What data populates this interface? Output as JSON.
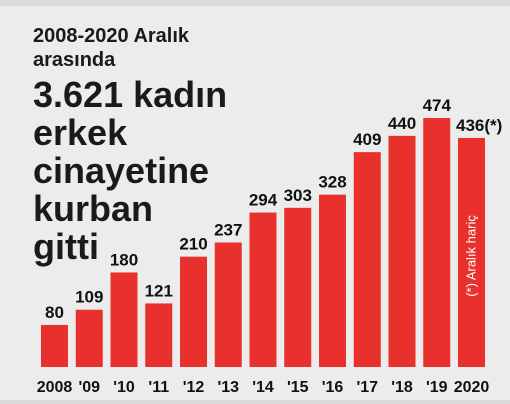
{
  "header": {
    "intro_line1": "2008-2020 Aralık",
    "intro_line2": "arasında",
    "headline_lines": [
      "3.621 kadın",
      "erkek",
      "cinayetine",
      "kurban",
      "gitti"
    ]
  },
  "chart_data": {
    "type": "bar",
    "categories": [
      "2008",
      "'09",
      "'10",
      "'11",
      "'12",
      "'13",
      "'14",
      "'15",
      "'16",
      "'17",
      "'18",
      "'19",
      "2020"
    ],
    "values": [
      80,
      109,
      180,
      121,
      210,
      237,
      294,
      303,
      328,
      409,
      440,
      474,
      436
    ],
    "value_labels": [
      "80",
      "109",
      "180",
      "121",
      "210",
      "237",
      "294",
      "303",
      "328",
      "409",
      "440",
      "474",
      "436(*)"
    ],
    "bar_note": "(*) Aralık hariç",
    "ylim": [
      0,
      474
    ],
    "grid": false,
    "colors": {
      "bar": "#e8302c",
      "background": "#ececec",
      "text": "#111111"
    }
  }
}
